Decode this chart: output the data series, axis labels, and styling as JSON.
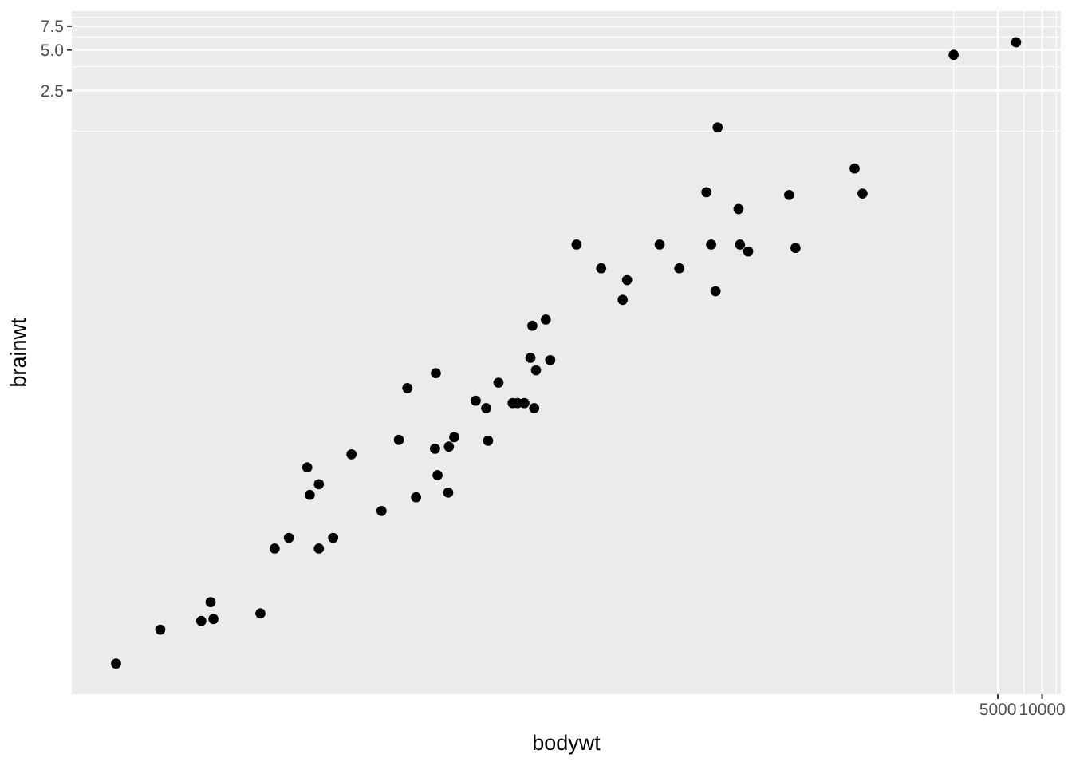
{
  "chart_data": {
    "type": "scatter",
    "xlabel": "bodywt",
    "ylabel": "brainwt",
    "log": "xy",
    "grid": true,
    "marker": "circle",
    "xlim": [
      0.0025,
      13400
    ],
    "ylim": [
      8.3e-05,
      9.7
    ],
    "xticks": [
      {
        "value": 2500,
        "label": null
      },
      5000,
      {
        "value": 7500,
        "label": null
      },
      10000,
      {
        "value": 12500,
        "label": null
      }
    ],
    "yticks": [
      {
        "value": 1.25,
        "label": null
      },
      2.5,
      {
        "value": 3.75,
        "label": null
      },
      {
        "value": 5,
        "label": "5.0"
      },
      {
        "value": 6.25,
        "label": null
      },
      7.5,
      {
        "value": 8.75,
        "label": null
      }
    ],
    "series": [
      {
        "color": "#000000",
        "x": [
          0.005,
          0.01,
          0.019,
          0.022,
          0.023,
          0.048,
          0.06,
          0.075,
          0.1,
          0.104,
          0.12,
          0.12,
          0.15,
          0.2,
          0.32,
          0.42,
          0.48,
          0.55,
          0.74,
          0.77,
          0.92,
          0.91,
          1.0,
          1.4,
          1.65,
          1.7,
          2.0,
          2.5,
          2.7,
          3.0,
          3.5,
          4.2,
          3.4,
          3.3,
          4.5,
          3.6,
          0.75,
          62,
          530,
          52,
          190,
          600,
          86,
          6.8,
          25,
          56,
          88,
          100,
          210,
          10,
          34,
          15,
          14,
          60,
          2500,
          6650
        ],
        "values": [
          0.00014,
          0.00025,
          0.00029,
          0.0004,
          0.0003,
          0.00033,
          0.001,
          0.0012,
          0.004,
          0.0025,
          0.003,
          0.001,
          0.0012,
          0.005,
          0.0019,
          0.0064,
          0.0155,
          0.0024,
          0.0055,
          0.0035,
          0.0057,
          0.0026,
          0.0067,
          0.0125,
          0.011,
          0.0063,
          0.017,
          0.012,
          0.012,
          0.012,
          0.011,
          0.05,
          0.045,
          0.026,
          0.025,
          0.021,
          0.02,
          1.33,
          0.66,
          0.44,
          0.42,
          0.43,
          0.33,
          0.18,
          0.18,
          0.18,
          0.18,
          0.16,
          0.17,
          0.12,
          0.12,
          0.098,
          0.07,
          0.081,
          4.6,
          5.7
        ]
      }
    ]
  }
}
